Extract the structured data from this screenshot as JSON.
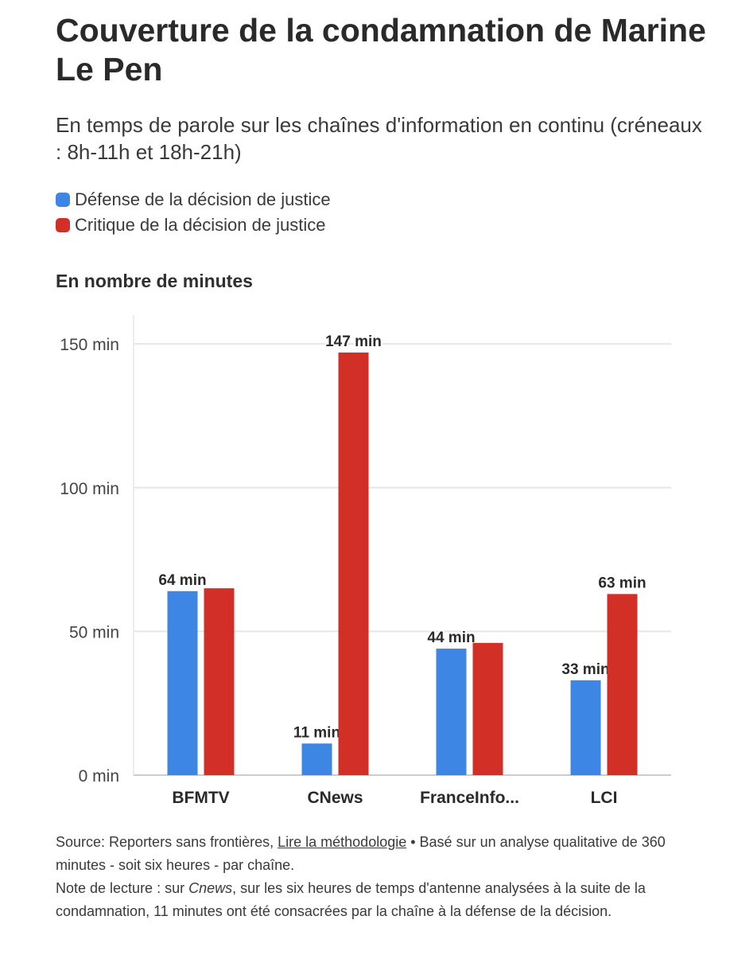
{
  "title": "Couverture de la condamnation de Marine Le Pen",
  "subtitle": "En temps de parole sur les chaînes d'information en continu (créneaux : 8h-11h et 18h-21h)",
  "unit_label": "En nombre de minutes",
  "colors": {
    "defense": "#3e86e4",
    "critique": "#d23027",
    "grid": "#e6e6e6",
    "baseline": "#cccccc"
  },
  "chart_data": {
    "type": "bar",
    "categories": [
      "BFMTV",
      "CNews",
      "FranceInfo...",
      "LCI"
    ],
    "series": [
      {
        "name": "Défense de la décision de justice",
        "values": [
          64,
          11,
          44,
          33
        ],
        "labels": [
          "64 min",
          "11 min",
          "44 min",
          "33 min"
        ]
      },
      {
        "name": "Critique de la décision de justice",
        "values": [
          65,
          147,
          46,
          63
        ],
        "labels": [
          "",
          "147 min",
          "",
          "63 min"
        ]
      }
    ],
    "ylim": [
      0,
      160
    ],
    "yticks": [
      0,
      50,
      100,
      150
    ],
    "ytick_labels": [
      "0 min",
      "50 min",
      "100 min",
      "150 min"
    ],
    "ylabel": "En nombre de minutes",
    "xlabel": "",
    "legend": "top-left",
    "grid": true
  },
  "footer": {
    "source_prefix": "Source: Reporters sans frontières, ",
    "source_link": "Lire la méthodologie",
    "source_suffix": " • Basé sur un analyse qualitative de 360 minutes - soit six heures - par chaîne.",
    "note_prefix": "Note de lecture : sur ",
    "note_em": "Cnews",
    "note_suffix": ", sur les six heures de temps d'antenne analysées à la suite de la condamnation, 11 minutes ont été consacrées par la chaîne à la défense de la décision."
  }
}
